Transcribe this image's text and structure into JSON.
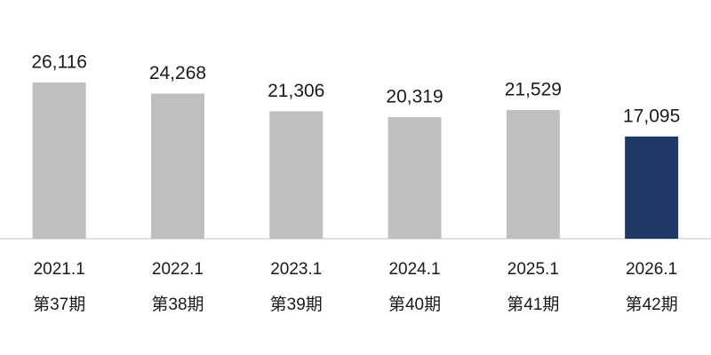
{
  "chart_data": {
    "type": "bar",
    "categories": [
      "2021.1",
      "2022.1",
      "2023.1",
      "2024.1",
      "2025.1",
      "2026.1"
    ],
    "sublabels": [
      "第37期",
      "第38期",
      "第39期",
      "第40期",
      "第41期",
      "第42期"
    ],
    "values": [
      26116,
      24268,
      21306,
      20319,
      21529,
      17095
    ],
    "value_labels": [
      "26,116",
      "24,268",
      "21,306",
      "20,319",
      "21,529",
      "17,095"
    ],
    "colors": [
      "#bfbfbf",
      "#bfbfbf",
      "#bfbfbf",
      "#bfbfbf",
      "#bfbfbf",
      "#1f3864"
    ]
  }
}
